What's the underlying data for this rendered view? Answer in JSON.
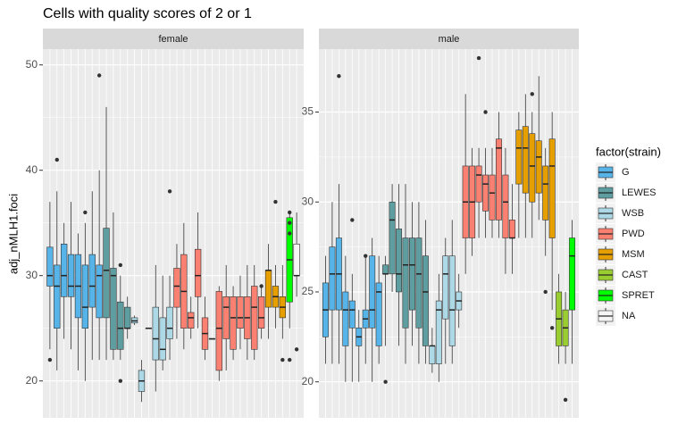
{
  "chart_data": {
    "type": "box",
    "title": "Cells with quality scores of 2 or 1",
    "y_label": "adj_nMLH1.foci",
    "legend_title": "factor(strain)",
    "series": [
      {
        "name": "G",
        "color": "#56b4e9"
      },
      {
        "name": "LEWES",
        "color": "#5f9ea0"
      },
      {
        "name": "WSB",
        "color": "#add8e6"
      },
      {
        "name": "PWD",
        "color": "#fa8072"
      },
      {
        "name": "MSM",
        "color": "#e69f00"
      },
      {
        "name": "CAST",
        "color": "#9acd32"
      },
      {
        "name": "SPRET",
        "color": "#00ff00"
      },
      {
        "name": "NA",
        "color": "#f5f5f5"
      }
    ],
    "facets": [
      {
        "label": "female",
        "ylim": [
          16.5,
          51.5
        ],
        "yticks": [
          20,
          30,
          40,
          50
        ],
        "groups": [
          [
            {
              "stats": [
                23,
                29,
                30,
                32.7,
                37
              ],
              "outliers": [
                22
              ]
            },
            {
              "stats": [
                21,
                25,
                29,
                31,
                38
              ],
              "outliers": [
                41
              ]
            },
            {
              "stats": [
                24,
                28,
                30,
                33,
                35
              ]
            },
            {
              "stats": [
                23,
                28,
                29,
                32,
                37
              ]
            },
            {
              "stats": [
                21,
                26,
                29,
                32,
                34
              ]
            },
            {
              "stats": [
                20,
                25,
                27,
                31,
                35
              ],
              "outliers": [
                36
              ]
            },
            {
              "stats": [
                22,
                27,
                29,
                32,
                38
              ]
            },
            {
              "stats": [
                22,
                26,
                30,
                31,
                40
              ],
              "outliers": [
                49
              ]
            }
          ],
          [
            {
              "stats": [
                22,
                26,
                30.5,
                34.5,
                46
              ]
            },
            {
              "stats": [
                22,
                23,
                30,
                30.7,
                36
              ]
            },
            {
              "stats": [
                22,
                23,
                25,
                27.5,
                30
              ],
              "outliers": [
                20,
                31
              ]
            },
            {
              "stats": [
                24,
                25,
                25,
                27,
                28
              ]
            }
          ],
          [
            {
              "stats": [
                25.3,
                25.5,
                25.7,
                26,
                26.2
              ]
            },
            {
              "stats": [
                18,
                19,
                20,
                21,
                22
              ]
            },
            {
              "stats": [
                25,
                25,
                25,
                25,
                25
              ]
            },
            {
              "stats": [
                19,
                22,
                24,
                27,
                31
              ]
            },
            {
              "stats": [
                21,
                22,
                23,
                26,
                30
              ]
            },
            {
              "stats": [
                22,
                24,
                25,
                27,
                30
              ],
              "outliers": [
                38
              ]
            }
          ],
          [
            {
              "stats": [
                24,
                27,
                29,
                30.7,
                33
              ]
            },
            {
              "stats": [
                23,
                25,
                28.5,
                32,
                35
              ]
            },
            {
              "stats": [
                24,
                25,
                26,
                26.5,
                28
              ]
            },
            {
              "stats": [
                25,
                28,
                30,
                32.5,
                36
              ]
            },
            {
              "stats": [
                22,
                23,
                24.5,
                26,
                28
              ]
            },
            {
              "stats": [
                24,
                24,
                24,
                24,
                24
              ]
            },
            {
              "stats": [
                20,
                21,
                25,
                28.5,
                29
              ]
            },
            {
              "stats": [
                21,
                24,
                27,
                28,
                31
              ]
            },
            {
              "stats": [
                22,
                23,
                26,
                28,
                29
              ]
            },
            {
              "stats": [
                23,
                25,
                26,
                28,
                30
              ]
            },
            {
              "stats": [
                22,
                24,
                26,
                28,
                31
              ]
            },
            {
              "stats": [
                22,
                23,
                27,
                29,
                31
              ]
            },
            {
              "stats": [
                24,
                25,
                26,
                28,
                29
              ],
              "outliers": [
                29
              ]
            }
          ],
          [
            {
              "stats": [
                24,
                27,
                30.5,
                30.5,
                33
              ]
            },
            {
              "stats": [
                25,
                27,
                28,
                29,
                31
              ],
              "outliers": [
                37
              ]
            },
            {
              "stats": [
                24,
                26,
                27,
                28,
                31
              ],
              "outliers": [
                22
              ]
            }
          ],
          [],
          [
            {
              "stats": [
                25,
                27.5,
                31.5,
                35.5,
                36
              ],
              "outliers": [
                36,
                35,
                34,
                22
              ]
            }
          ],
          [
            {
              "stats": [
                28,
                30,
                30,
                33,
                36
              ],
              "outliers": [
                23
              ]
            }
          ]
        ]
      },
      {
        "label": "male",
        "ylim": [
          18,
          38.5
        ],
        "yticks": [
          20,
          25,
          30,
          35
        ],
        "groups": [
          [
            {
              "stats": [
                21,
                22.5,
                24,
                25.5,
                27
              ]
            },
            {
              "stats": [
                21,
                24,
                26,
                27.5,
                30
              ]
            },
            {
              "stats": [
                21,
                24,
                26,
                28,
                31
              ],
              "outliers": [
                37
              ]
            },
            {
              "stats": [
                20,
                22,
                24,
                25,
                27
              ]
            },
            {
              "stats": [
                20,
                23,
                24,
                24.5,
                26
              ],
              "outliers": [
                29
              ]
            },
            {
              "stats": [
                20,
                22,
                22.5,
                23,
                24
              ]
            },
            {
              "stats": [
                21,
                23,
                23.5,
                24,
                27
              ],
              "outliers": [
                27
              ]
            },
            {
              "stats": [
                20,
                23,
                24,
                27,
                28
              ]
            },
            {
              "stats": [
                21,
                22,
                25,
                25.5,
                27
              ]
            }
          ],
          [
            {
              "stats": [
                22,
                26,
                26,
                26.5,
                27
              ],
              "outliers": [
                20
              ]
            },
            {
              "stats": [
                25,
                26,
                29,
                30,
                31
              ]
            },
            {
              "stats": [
                22,
                25,
                26,
                28.5,
                31
              ]
            },
            {
              "stats": [
                21,
                23,
                26.5,
                28,
                31
              ]
            },
            {
              "stats": [
                22,
                24,
                26.5,
                28,
                30
              ]
            },
            {
              "stats": [
                21,
                23,
                26,
                28,
                30
              ]
            },
            {
              "stats": [
                21,
                22,
                25,
                27,
                29
              ]
            }
          ],
          [
            {
              "stats": [
                20.5,
                21,
                22,
                22,
                23
              ]
            },
            {
              "stats": [
                20,
                21,
                24,
                24.5,
                26
              ]
            },
            {
              "stats": [
                21,
                23.5,
                26,
                27,
                28
              ]
            },
            {
              "stats": [
                21,
                22,
                24,
                27,
                29
              ]
            },
            {
              "stats": [
                23,
                24,
                24.5,
                25,
                26
              ]
            }
          ],
          [
            {
              "stats": [
                26,
                28,
                30,
                32,
                36
              ]
            },
            {
              "stats": [
                27,
                28,
                30,
                32,
                33
              ]
            },
            {
              "stats": [
                28,
                30,
                31.5,
                32,
                33
              ],
              "outliers": [
                38
              ]
            },
            {
              "stats": [
                28,
                29.5,
                31,
                31.5,
                33
              ],
              "outliers": [
                35
              ]
            },
            {
              "stats": [
                28,
                29,
                30.5,
                31.5,
                33
              ]
            },
            {
              "stats": [
                28,
                29,
                33,
                33.5,
                35
              ]
            },
            {
              "stats": [
                26,
                28,
                30,
                31.5,
                33
              ]
            },
            {
              "stats": [
                26,
                28,
                28,
                29,
                31
              ]
            }
          ],
          [
            {
              "stats": [
                28,
                31,
                33,
                34,
                35
              ]
            },
            {
              "stats": [
                28,
                30.5,
                33,
                34.2,
                36
              ]
            },
            {
              "stats": [
                28,
                30,
                32,
                33.8,
                35
              ],
              "outliers": [
                36
              ]
            },
            {
              "stats": [
                29,
                30.5,
                32.5,
                33.4,
                37
              ]
            },
            {
              "stats": [
                27,
                29,
                31,
                32,
                33
              ],
              "outliers": [
                25
              ]
            },
            {
              "stats": [
                24,
                28,
                32,
                33.5,
                35
              ],
              "outliers": [
                23
              ]
            }
          ],
          [
            {
              "stats": [
                21,
                22,
                23.5,
                25,
                26
              ]
            },
            {
              "stats": [
                21,
                22,
                23,
                24,
                25
              ],
              "outliers": [
                19
              ]
            }
          ],
          [
            {
              "stats": [
                21,
                24,
                27,
                28,
                29
              ]
            }
          ],
          []
        ]
      }
    ]
  }
}
